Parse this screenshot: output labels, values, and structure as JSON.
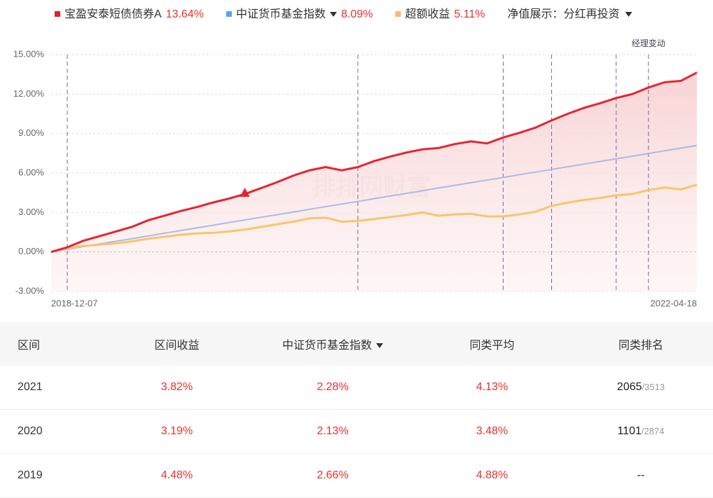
{
  "chart_data": {
    "type": "line",
    "legend": [
      {
        "name": "宝盈安泰短债债券A",
        "value": "13.64%"
      },
      {
        "name": "中证货币基金指数",
        "value": "8.09%"
      },
      {
        "name": "超额收益",
        "value": "5.11%"
      }
    ],
    "display_label": "净值展示：",
    "display_option": "分红再投资",
    "annotation": "经理变动",
    "watermark": "排排网财富",
    "categories": [
      "2018-12-07",
      null,
      null,
      null,
      null,
      null,
      null,
      null,
      null,
      null,
      null,
      null,
      null,
      null,
      null,
      null,
      null,
      null,
      null,
      null,
      null,
      null,
      null,
      null,
      null,
      null,
      null,
      null,
      null,
      null,
      null,
      null,
      null,
      null,
      null,
      null,
      null,
      null,
      null,
      null,
      "2022-04-18"
    ],
    "series": [
      {
        "name": "宝盈安泰短债债券A",
        "color": "#e8232f",
        "legend_color": "#e0212a",
        "values": [
          0.0,
          0.35,
          0.85,
          1.2,
          1.55,
          1.9,
          2.4,
          2.75,
          3.1,
          3.4,
          3.75,
          4.05,
          4.4,
          4.85,
          5.3,
          5.8,
          6.2,
          6.45,
          6.2,
          6.45,
          6.9,
          7.25,
          7.55,
          7.8,
          7.9,
          8.2,
          8.4,
          8.25,
          8.7,
          9.05,
          9.45,
          10.0,
          10.5,
          10.95,
          11.3,
          11.7,
          12.0,
          12.5,
          12.9,
          13.0,
          13.64
        ]
      },
      {
        "name": "中证货币基金指数",
        "color": "#a9bbe6",
        "legend_color": "#5aa3f0",
        "values": [
          0,
          0.2,
          0.4,
          0.61,
          0.81,
          1.01,
          1.21,
          1.42,
          1.62,
          1.82,
          2.02,
          2.23,
          2.43,
          2.63,
          2.83,
          3.03,
          3.24,
          3.44,
          3.64,
          3.84,
          4.05,
          4.25,
          4.45,
          4.65,
          4.86,
          5.06,
          5.26,
          5.46,
          5.66,
          5.87,
          6.07,
          6.27,
          6.47,
          6.68,
          6.88,
          7.08,
          7.28,
          7.48,
          7.69,
          7.89,
          8.09
        ]
      },
      {
        "name": "超额收益",
        "color": "#f9c46a",
        "legend_color": "#f7b77e",
        "values": [
          0.0,
          0.3,
          0.45,
          0.55,
          0.65,
          0.8,
          1.0,
          1.15,
          1.3,
          1.4,
          1.45,
          1.55,
          1.7,
          1.9,
          2.1,
          2.3,
          2.55,
          2.6,
          2.3,
          2.35,
          2.5,
          2.65,
          2.8,
          3.0,
          2.75,
          2.85,
          2.9,
          2.7,
          2.7,
          2.85,
          3.05,
          3.5,
          3.75,
          3.95,
          4.1,
          4.3,
          4.4,
          4.7,
          4.9,
          4.75,
          5.11
        ]
      }
    ],
    "event_indices": [
      1,
      19,
      28,
      31,
      35,
      37
    ],
    "annotation_index": 37,
    "marker_index": 12,
    "ylim": [
      -3,
      15
    ],
    "yticks": [
      {
        "value": -3,
        "label": "-3.00%"
      },
      {
        "value": 0,
        "label": "0.00%"
      },
      {
        "value": 3,
        "label": "3.00%"
      },
      {
        "value": 6,
        "label": "6.00%"
      },
      {
        "value": 9,
        "label": "9.00%"
      },
      {
        "value": 12,
        "label": "12.00%"
      },
      {
        "value": 15,
        "label": "15.00%"
      }
    ],
    "grid": true
  },
  "table": {
    "header": [
      "区间",
      "区间收益",
      "中证货币基金指数",
      "同类平均",
      "同类排名"
    ],
    "rows": [
      [
        "2021",
        "3.82%",
        "2.28%",
        "4.13%",
        {
          "rank": "2065",
          "total": "/3513"
        }
      ],
      [
        "2020",
        "3.19%",
        "2.13%",
        "3.48%",
        {
          "rank": "1101",
          "total": "/2874"
        }
      ],
      [
        "2019",
        "4.48%",
        "2.66%",
        "4.88%",
        {
          "rank": "--",
          "total": ""
        }
      ]
    ]
  }
}
